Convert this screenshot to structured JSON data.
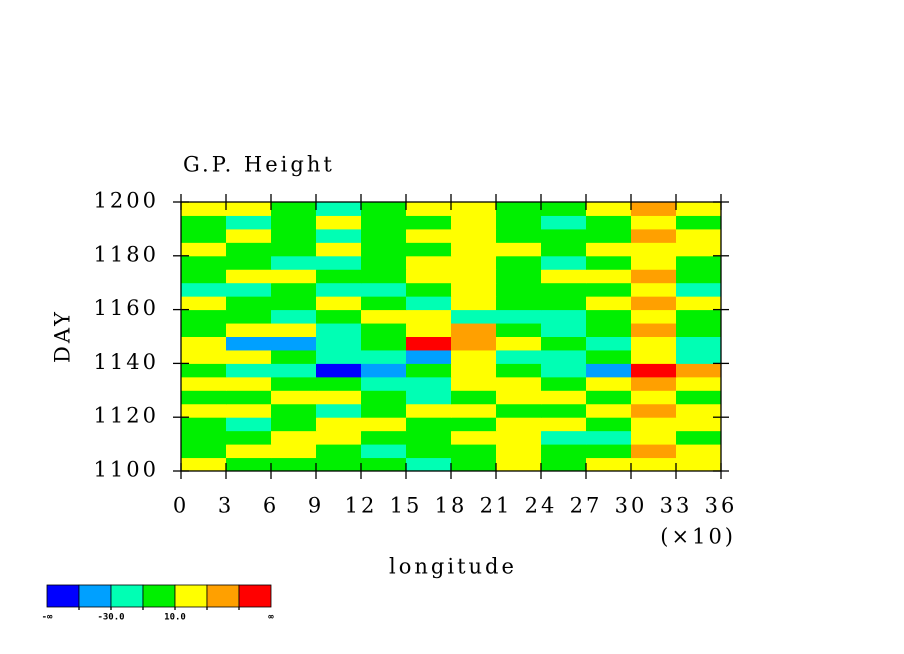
{
  "chart_data": {
    "type": "heatmap",
    "title": "G.P. Height",
    "x_label": "longitude",
    "x_scale_note": "(×10)",
    "y_label": "DAY",
    "xlim": [
      0,
      36
    ],
    "xticks": [
      0,
      3,
      6,
      9,
      12,
      15,
      18,
      21,
      24,
      27,
      30,
      33,
      36
    ],
    "ylim": [
      1100,
      1200
    ],
    "yticks": [
      1100,
      1120,
      1140,
      1160,
      1180,
      1200
    ],
    "x": [
      1.5,
      4.5,
      7.5,
      10.5,
      13.5,
      16.5,
      19.5,
      22.5,
      25.5,
      28.5,
      31.5,
      34.5
    ],
    "y": [
      1102.5,
      1107.5,
      1112.5,
      1117.5,
      1122.5,
      1127.5,
      1132.5,
      1137.5,
      1142.5,
      1147.5,
      1152.5,
      1157.5,
      1162.5,
      1167.5,
      1172.5,
      1177.5,
      1182.5,
      1187.5,
      1192.5,
      1197.5
    ],
    "z": [
      [
        12,
        5,
        -3,
        8,
        2,
        -12,
        5,
        15,
        -4,
        10,
        25,
        14
      ],
      [
        4,
        18,
        12,
        -6,
        -14,
        3,
        8,
        22,
        6,
        -2,
        35,
        20
      ],
      [
        -5,
        6,
        15,
        20,
        4,
        -8,
        12,
        16,
        -12,
        -18,
        15,
        8
      ],
      [
        8,
        -12,
        4,
        14,
        22,
        6,
        -4,
        10,
        18,
        6,
        28,
        16
      ],
      [
        16,
        10,
        -8,
        -15,
        5,
        14,
        22,
        8,
        -6,
        14,
        32,
        12
      ],
      [
        -8,
        4,
        18,
        12,
        -4,
        -16,
        6,
        24,
        10,
        -10,
        20,
        6
      ],
      [
        14,
        22,
        8,
        2,
        -18,
        -25,
        14,
        20,
        4,
        18,
        36,
        10
      ],
      [
        -6,
        -14,
        -20,
        -52,
        -48,
        -10,
        24,
        6,
        -24,
        -32,
        58,
        38
      ],
      [
        22,
        12,
        -4,
        -24,
        -28,
        -36,
        14,
        -12,
        -18,
        -6,
        26,
        -14
      ],
      [
        18,
        -42,
        -32,
        -12,
        6,
        56,
        46,
        18,
        -8,
        -12,
        20,
        -18
      ],
      [
        4,
        14,
        22,
        -18,
        -8,
        24,
        32,
        -4,
        -28,
        -6,
        34,
        8
      ],
      [
        -4,
        -10,
        -16,
        6,
        14,
        12,
        -12,
        -26,
        -14,
        4,
        28,
        -6
      ],
      [
        12,
        8,
        -6,
        18,
        4,
        -14,
        20,
        -6,
        6,
        16,
        38,
        10
      ],
      [
        -14,
        -20,
        -8,
        -30,
        -22,
        -4,
        18,
        8,
        -10,
        -4,
        22,
        -12
      ],
      [
        6,
        14,
        10,
        -2,
        8,
        14,
        22,
        4,
        12,
        18,
        30,
        6
      ],
      [
        -10,
        4,
        -18,
        -12,
        -6,
        10,
        16,
        -8,
        -14,
        6,
        18,
        -4
      ],
      [
        14,
        -6,
        8,
        16,
        -4,
        -8,
        26,
        12,
        -6,
        10,
        24,
        12
      ],
      [
        4,
        12,
        -10,
        -18,
        6,
        14,
        20,
        2,
        8,
        -4,
        34,
        16
      ],
      [
        -6,
        -14,
        6,
        12,
        -10,
        -4,
        14,
        -10,
        -16,
        8,
        28,
        -8
      ],
      [
        16,
        10,
        -4,
        -16,
        -6,
        18,
        12,
        6,
        -4,
        14,
        42,
        20
      ]
    ],
    "colorbar": {
      "levels": [
        -50,
        {
          "value": -30,
          "label": "-30.0"
        },
        -10,
        {
          "value": 10,
          "label": "10.0"
        },
        30,
        50
      ],
      "low_label": "-∞",
      "high_label": "∞",
      "colors": [
        "#0000ff",
        "#00a0ff",
        "#00ffb4",
        "#00f000",
        "#ffff00",
        "#ffa000",
        "#ff0000"
      ]
    }
  }
}
